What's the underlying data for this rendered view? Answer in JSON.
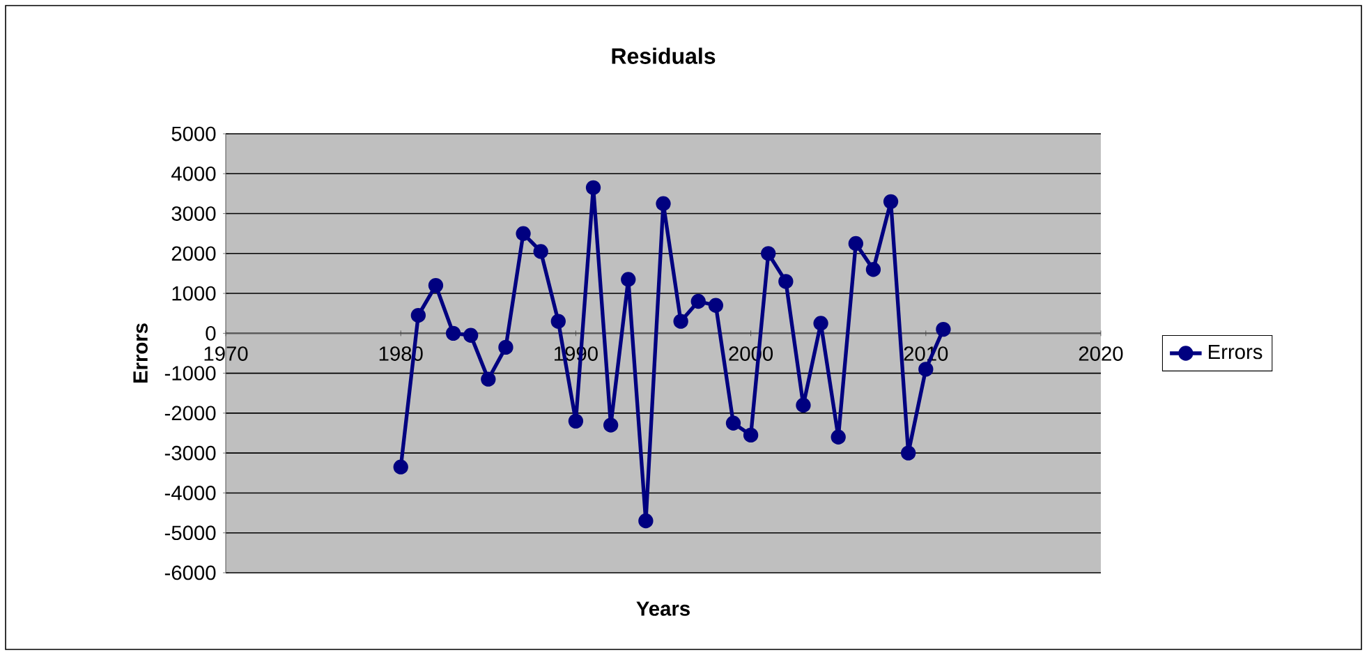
{
  "chart_data": {
    "type": "line",
    "title": "Residuals",
    "xlabel": "Years",
    "ylabel": "Errors",
    "x": [
      1980,
      1981,
      1982,
      1983,
      1984,
      1985,
      1986,
      1987,
      1988,
      1989,
      1990,
      1991,
      1992,
      1993,
      1994,
      1995,
      1996,
      1997,
      1998,
      1999,
      2000,
      2001,
      2002,
      2003,
      2004,
      2005,
      2006,
      2007,
      2008,
      2009,
      2010,
      2011
    ],
    "series": [
      {
        "name": "Errors",
        "color": "#000080",
        "values": [
          -3350,
          450,
          1200,
          0,
          -50,
          -1150,
          -350,
          2500,
          2050,
          300,
          -2200,
          3650,
          -2300,
          1350,
          -4700,
          3250,
          300,
          800,
          700,
          -2250,
          -2550,
          2000,
          1300,
          -1800,
          250,
          -2600,
          2250,
          1600,
          3300,
          -3000,
          -900,
          100
        ]
      }
    ],
    "xlim": [
      1970,
      2020
    ],
    "xticks": [
      1970,
      1980,
      1990,
      2000,
      2010,
      2020
    ],
    "ylim": [
      -6000,
      5000
    ],
    "yticks": [
      -6000,
      -5000,
      -4000,
      -3000,
      -2000,
      -1000,
      0,
      1000,
      2000,
      3000,
      4000,
      5000
    ],
    "grid": "y",
    "legend": "right",
    "marker": "circle",
    "line_style": "solid"
  }
}
